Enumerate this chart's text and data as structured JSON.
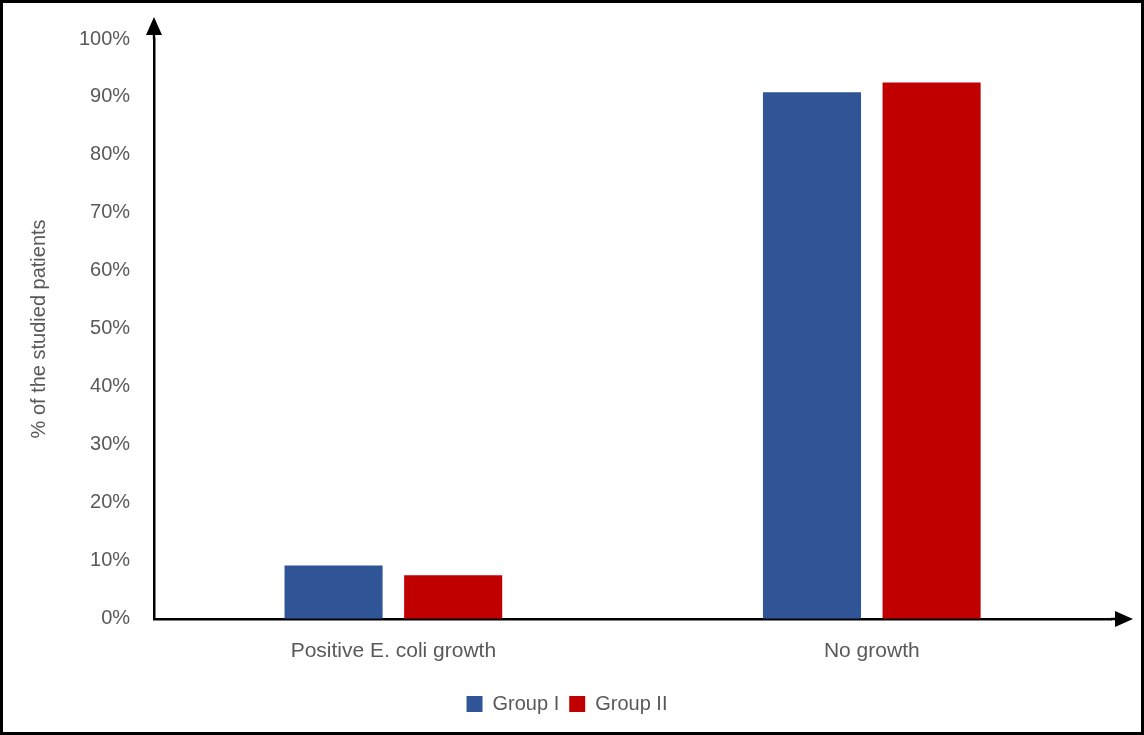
{
  "chart_data": {
    "type": "bar",
    "ylabel": "% of the studied patients",
    "categories": [
      "Positive E. coli growth",
      "No growth"
    ],
    "series": [
      {
        "name": "Group I",
        "color": "#2f5597",
        "values": [
          9.2,
          90.8
        ]
      },
      {
        "name": "Group II",
        "color": "#c00000",
        "values": [
          7.5,
          92.5
        ]
      }
    ],
    "ylim": [
      0,
      100
    ],
    "yticks": [
      {
        "value": 0,
        "label": "0%"
      },
      {
        "value": 10,
        "label": "10%"
      },
      {
        "value": 20,
        "label": "20%"
      },
      {
        "value": 30,
        "label": "30%"
      },
      {
        "value": 40,
        "label": "40%"
      },
      {
        "value": 50,
        "label": "50%"
      },
      {
        "value": 60,
        "label": "60%"
      },
      {
        "value": 70,
        "label": "70%"
      },
      {
        "value": 80,
        "label": "80%"
      },
      {
        "value": 90,
        "label": "90%"
      },
      {
        "value": 100,
        "label": "100%"
      }
    ],
    "grid": false,
    "legend": "bottom"
  }
}
